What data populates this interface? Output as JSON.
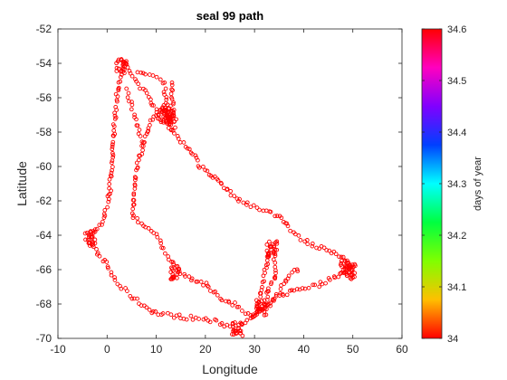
{
  "chart_data": {
    "type": "scatter",
    "title": "seal 99 path",
    "xlabel": "Longitude",
    "ylabel": "Latitude",
    "xlim": [
      -10,
      60
    ],
    "ylim": [
      -70,
      -52
    ],
    "xticks": [
      "-10",
      "0",
      "10",
      "20",
      "30",
      "40",
      "50",
      "60"
    ],
    "yticks": [
      "-52",
      "-54",
      "-56",
      "-58",
      "-60",
      "-62",
      "-64",
      "-66",
      "-68",
      "-70"
    ],
    "marker": "open-circle",
    "marker_color": "#ff0000",
    "grid": false,
    "colorbar": {
      "label": "days of year",
      "range": [
        34,
        34.6
      ],
      "ticks": [
        "34",
        "34.1",
        "34.2",
        "34.3",
        "34.4",
        "34.5",
        "34.6"
      ],
      "colormap": "hsv",
      "colormap_stops": [
        "#ff0000",
        "#ffbf00",
        "#80ff00",
        "#00ff40",
        "#00ffff",
        "#0040ff",
        "#8000ff",
        "#ff00bf",
        "#ff0000"
      ]
    },
    "track": [
      [
        3.5,
        -54.0
      ],
      [
        3.0,
        -54.5
      ],
      [
        2.5,
        -55.0
      ],
      [
        2.0,
        -55.8
      ],
      [
        1.8,
        -56.5
      ],
      [
        1.5,
        -57.5
      ],
      [
        1.2,
        -58.5
      ],
      [
        1.0,
        -59.5
      ],
      [
        0.8,
        -60.5
      ],
      [
        0.5,
        -61.5
      ],
      [
        0.2,
        -62.0
      ],
      [
        -0.5,
        -62.8
      ],
      [
        -1.5,
        -63.5
      ],
      [
        -2.5,
        -63.9
      ],
      [
        -3.5,
        -64.2
      ],
      [
        -2.8,
        -64.6
      ],
      [
        -2.0,
        -65.0
      ],
      [
        -1.0,
        -65.4
      ],
      [
        0.0,
        -65.8
      ],
      [
        1.0,
        -66.3
      ],
      [
        2.0,
        -66.8
      ],
      [
        3.5,
        -67.2
      ],
      [
        5.0,
        -67.6
      ],
      [
        7.0,
        -68.0
      ],
      [
        9.0,
        -68.4
      ],
      [
        11.0,
        -68.6
      ],
      [
        14.0,
        -68.7
      ],
      [
        17.0,
        -68.8
      ],
      [
        20.0,
        -68.9
      ],
      [
        23.0,
        -69.1
      ],
      [
        25.0,
        -69.3
      ],
      [
        26.5,
        -69.6
      ],
      [
        27.5,
        -69.3
      ],
      [
        29.0,
        -68.9
      ],
      [
        30.5,
        -68.6
      ],
      [
        32.0,
        -68.3
      ],
      [
        33.0,
        -68.0
      ],
      [
        34.0,
        -67.7
      ],
      [
        35.5,
        -67.5
      ],
      [
        37.0,
        -67.3
      ],
      [
        39.0,
        -67.1
      ],
      [
        41.0,
        -67.0
      ],
      [
        43.0,
        -66.9
      ],
      [
        45.0,
        -66.6
      ],
      [
        47.0,
        -66.3
      ],
      [
        48.5,
        -66.0
      ],
      [
        50.0,
        -65.9
      ],
      [
        49.0,
        -65.5
      ],
      [
        47.5,
        -65.2
      ],
      [
        46.0,
        -65.0
      ],
      [
        44.0,
        -64.8
      ],
      [
        42.0,
        -64.6
      ],
      [
        40.0,
        -64.3
      ],
      [
        38.5,
        -63.9
      ],
      [
        37.0,
        -63.5
      ],
      [
        35.0,
        -63.0
      ],
      [
        33.0,
        -62.6
      ],
      [
        30.0,
        -62.3
      ],
      [
        27.0,
        -62.0
      ],
      [
        25.0,
        -61.5
      ],
      [
        23.0,
        -61.0
      ],
      [
        21.0,
        -60.5
      ],
      [
        19.0,
        -60.0
      ],
      [
        17.5,
        -59.3
      ],
      [
        16.0,
        -58.8
      ],
      [
        14.5,
        -58.4
      ],
      [
        13.0,
        -57.8
      ],
      [
        12.0,
        -57.4
      ],
      [
        11.0,
        -57.2
      ],
      [
        10.0,
        -57.0
      ],
      [
        9.0,
        -57.4
      ],
      [
        8.2,
        -58.0
      ],
      [
        7.5,
        -58.5
      ],
      [
        7.0,
        -59.0
      ],
      [
        6.2,
        -59.8
      ],
      [
        5.8,
        -60.5
      ],
      [
        5.4,
        -61.5
      ],
      [
        5.2,
        -62.5
      ],
      [
        5.5,
        -63.0
      ],
      [
        6.5,
        -63.2
      ],
      [
        8.0,
        -63.5
      ],
      [
        9.5,
        -63.9
      ],
      [
        11.0,
        -64.5
      ],
      [
        12.0,
        -65.0
      ],
      [
        13.0,
        -65.5
      ],
      [
        14.5,
        -66.0
      ],
      [
        16.0,
        -66.4
      ],
      [
        18.0,
        -66.6
      ],
      [
        20.0,
        -66.9
      ],
      [
        22.0,
        -67.4
      ],
      [
        24.0,
        -67.8
      ],
      [
        26.0,
        -68.0
      ],
      [
        27.5,
        -68.3
      ],
      [
        28.5,
        -68.6
      ],
      [
        29.5,
        -68.8
      ],
      [
        30.5,
        -68.4
      ],
      [
        31.0,
        -67.8
      ],
      [
        31.5,
        -67.0
      ],
      [
        32.0,
        -66.3
      ],
      [
        32.5,
        -65.6
      ],
      [
        33.0,
        -65.0
      ],
      [
        33.5,
        -64.7
      ],
      [
        34.0,
        -65.3
      ],
      [
        34.5,
        -66.0
      ],
      [
        34.0,
        -66.6
      ],
      [
        33.0,
        -67.0
      ],
      [
        32.5,
        -67.6
      ],
      [
        31.5,
        -68.1
      ],
      [
        30.5,
        -68.5
      ],
      [
        31.5,
        -68.2
      ],
      [
        33.0,
        -68.0
      ],
      [
        35.0,
        -67.3
      ],
      [
        36.5,
        -66.6
      ],
      [
        37.5,
        -66.2
      ],
      [
        38.5,
        -66.0
      ],
      [
        39.5,
        -66.1
      ]
    ],
    "tracks_extra": [
      [
        [
          3.5,
          -54.0
        ],
        [
          5.0,
          -54.6
        ],
        [
          6.5,
          -55.2
        ],
        [
          8.0,
          -55.8
        ],
        [
          9.0,
          -56.2
        ],
        [
          10.0,
          -56.6
        ],
        [
          11.0,
          -57.0
        ]
      ],
      [
        [
          6.0,
          -54.6
        ],
        [
          8.0,
          -54.6
        ],
        [
          10.0,
          -54.8
        ],
        [
          11.5,
          -55.0
        ],
        [
          12.0,
          -56.0
        ],
        [
          12.5,
          -57.0
        ],
        [
          13.5,
          -57.5
        ]
      ],
      [
        [
          13.0,
          -55.0
        ],
        [
          13.2,
          -56.0
        ],
        [
          13.5,
          -56.8
        ],
        [
          12.5,
          -57.2
        ]
      ],
      [
        [
          4.0,
          -55.5
        ],
        [
          5.0,
          -56.5
        ],
        [
          6.0,
          -57.5
        ],
        [
          6.8,
          -58.3
        ],
        [
          7.5,
          -58.9
        ]
      ]
    ],
    "clusters": [
      [
        3.0,
        -54.2
      ],
      [
        11.5,
        -57.0
      ],
      [
        12.5,
        -56.8
      ],
      [
        13.0,
        -57.4
      ],
      [
        -3.5,
        -64.2
      ],
      [
        48.5,
        -65.9
      ],
      [
        49.5,
        -66.1
      ],
      [
        31.5,
        -68.2
      ],
      [
        26.5,
        -69.5
      ],
      [
        33.5,
        -64.8
      ],
      [
        14.0,
        -66.2
      ]
    ]
  }
}
